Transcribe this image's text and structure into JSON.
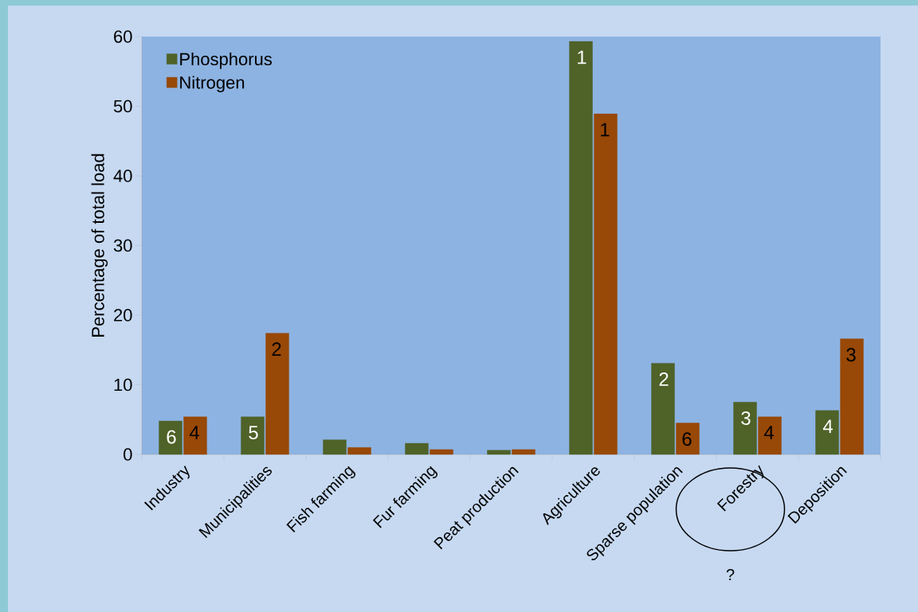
{
  "chart_data": {
    "type": "bar",
    "ylabel": "Percentage of total load",
    "categories": [
      "Industry",
      "Municipalities",
      "Fish farming",
      "Fur farming",
      "Peat production",
      "Agriculture",
      "Sparse population",
      "Forestry",
      "Deposition"
    ],
    "series": [
      {
        "name": "Phosphorus",
        "color": "#4f6228",
        "values": [
          4.8,
          5.4,
          2.1,
          1.6,
          0.6,
          59.3,
          13.1,
          7.5,
          6.3
        ]
      },
      {
        "name": "Nitrogen",
        "color": "#984807",
        "values": [
          5.4,
          17.4,
          1.0,
          0.7,
          0.7,
          48.9,
          4.5,
          5.4,
          16.6
        ]
      }
    ],
    "ylim": [
      0,
      60
    ],
    "yticks": [
      0,
      10,
      20,
      30,
      40,
      50,
      60
    ],
    "legend": "top left",
    "annotations": [
      {
        "text": "6",
        "x": "Industry",
        "y": 4.8
      },
      {
        "text": "4",
        "x": "Industry",
        "y": 5.4
      },
      {
        "text": "5",
        "x": "Municipalities",
        "y": 5.4
      },
      {
        "text": "2",
        "x": "Municipalities",
        "y": 17.4
      },
      {
        "text": "1",
        "x": "Agriculture",
        "y": 59.3
      },
      {
        "text": "1",
        "x": "Agriculture",
        "y": 48.9
      },
      {
        "text": "2",
        "x": "Sparse population",
        "y": 13.1
      },
      {
        "text": "6",
        "x": "Sparse population",
        "y": 4.5
      },
      {
        "text": "3",
        "x": "Forestry",
        "y": 7.5
      },
      {
        "text": "4",
        "x": "Forestry",
        "y": 5.4
      },
      {
        "text": "4",
        "x": "Deposition",
        "y": 6.3
      },
      {
        "text": "3",
        "x": "Deposition",
        "y": 16.6
      },
      "?"
    ]
  }
}
